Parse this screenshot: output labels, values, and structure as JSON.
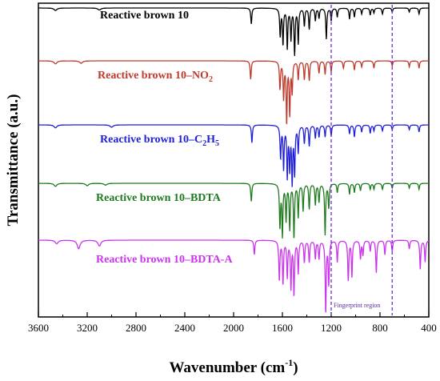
{
  "chart_data": {
    "type": "line",
    "xlabel": "Wavenumber (cm",
    "xlabel_sup": "-1",
    "xlabel_end": ")",
    "ylabel": "Transmittance (a.u.)",
    "x_reversed": true,
    "xlim": [
      3600,
      400
    ],
    "x_ticks": [
      3600,
      3200,
      2800,
      2400,
      2000,
      1600,
      1200,
      800,
      400
    ],
    "y_ticks_shown": false,
    "legend": "inline labels next to each spectrum",
    "annotation": {
      "text": "Fingerprint region",
      "range_cm": [
        1200,
        700
      ],
      "color": "#6a2bd9",
      "style": "dashed vertical lines"
    },
    "series": [
      {
        "name": "Reactive brown 10",
        "label_main": "Reactive brown 10",
        "label_sub": "",
        "label_tail": "",
        "color": "#000000",
        "peaks": [
          [
            1855,
            0.32
          ],
          [
            1618,
            0.55
          ],
          [
            1595,
            0.72
          ],
          [
            1560,
            0.8
          ],
          [
            1530,
            0.62
          ],
          [
            1500,
            0.92
          ],
          [
            1470,
            0.7
          ],
          [
            1420,
            0.35
          ],
          [
            1380,
            0.42
          ],
          [
            1330,
            0.25
          ],
          [
            1300,
            0.2
          ],
          [
            1240,
            0.62
          ],
          [
            1200,
            0.25
          ],
          [
            1150,
            0.18
          ],
          [
            1050,
            0.22
          ],
          [
            1010,
            0.18
          ],
          [
            950,
            0.12
          ],
          [
            880,
            0.14
          ],
          [
            850,
            0.1
          ],
          [
            780,
            0.12
          ],
          [
            700,
            0.08
          ],
          [
            560,
            0.08
          ],
          [
            480,
            0.12
          ],
          [
            3460,
            0.05
          ],
          [
            3100,
            0.04
          ]
        ]
      },
      {
        "name": "Reactive brown 10–NO2",
        "label_main": "Reactive brown 10–NO",
        "label_sub": "2",
        "label_tail": "",
        "color": "#c0392b",
        "peaks": [
          [
            1860,
            0.3
          ],
          [
            1620,
            0.45
          ],
          [
            1590,
            0.6
          ],
          [
            1565,
            1.0
          ],
          [
            1540,
            0.85
          ],
          [
            1520,
            0.5
          ],
          [
            1470,
            0.3
          ],
          [
            1420,
            0.3
          ],
          [
            1380,
            0.32
          ],
          [
            1300,
            0.2
          ],
          [
            1250,
            0.22
          ],
          [
            1200,
            0.18
          ],
          [
            1100,
            0.12
          ],
          [
            1010,
            0.15
          ],
          [
            950,
            0.1
          ],
          [
            850,
            0.12
          ],
          [
            700,
            0.08
          ],
          [
            560,
            0.1
          ],
          [
            480,
            0.12
          ],
          [
            3460,
            0.05
          ],
          [
            3250,
            0.04
          ]
        ]
      },
      {
        "name": "Reactive brown 10–C2H5",
        "label_main": "Reactive brown 10–C",
        "label_sub": "2",
        "label_tail": "H",
        "label_sub2": "5",
        "color": "#1f1fd6",
        "peaks": [
          [
            1850,
            0.3
          ],
          [
            1615,
            0.55
          ],
          [
            1590,
            0.72
          ],
          [
            1560,
            0.85
          ],
          [
            1540,
            0.7
          ],
          [
            1520,
            0.95
          ],
          [
            1500,
            0.8
          ],
          [
            1470,
            0.45
          ],
          [
            1420,
            0.3
          ],
          [
            1380,
            0.35
          ],
          [
            1330,
            0.22
          ],
          [
            1300,
            0.2
          ],
          [
            1250,
            0.2
          ],
          [
            1200,
            0.18
          ],
          [
            1050,
            0.15
          ],
          [
            1010,
            0.2
          ],
          [
            950,
            0.12
          ],
          [
            880,
            0.14
          ],
          [
            850,
            0.1
          ],
          [
            780,
            0.1
          ],
          [
            700,
            0.08
          ],
          [
            560,
            0.08
          ],
          [
            480,
            0.12
          ],
          [
            3460,
            0.05
          ],
          [
            3000,
            0.04
          ]
        ]
      },
      {
        "name": "Reactive brown 10–BDTA",
        "label_main": "Reactive brown 10–BDTA",
        "label_sub": "",
        "label_tail": "",
        "color": "#1f7a1f",
        "peaks": [
          [
            1855,
            0.3
          ],
          [
            1620,
            0.7
          ],
          [
            1600,
            0.85
          ],
          [
            1570,
            0.6
          ],
          [
            1540,
            0.75
          ],
          [
            1505,
            0.9
          ],
          [
            1470,
            0.55
          ],
          [
            1430,
            0.45
          ],
          [
            1380,
            0.42
          ],
          [
            1330,
            0.35
          ],
          [
            1300,
            0.3
          ],
          [
            1250,
            0.85
          ],
          [
            1220,
            0.4
          ],
          [
            1150,
            0.15
          ],
          [
            1050,
            0.18
          ],
          [
            1010,
            0.15
          ],
          [
            960,
            0.12
          ],
          [
            880,
            0.1
          ],
          [
            850,
            0.1
          ],
          [
            780,
            0.1
          ],
          [
            700,
            0.08
          ],
          [
            560,
            0.08
          ],
          [
            480,
            0.1
          ],
          [
            3460,
            0.05
          ],
          [
            3200,
            0.04
          ],
          [
            3050,
            0.03
          ]
        ]
      },
      {
        "name": "Reactive brown 10–BDTA-A",
        "label_main": "Reactive brown 10–BDTA-A",
        "label_sub": "",
        "label_tail": "",
        "color": "#cc33ee",
        "peaks": [
          [
            3270,
            0.12
          ],
          [
            3100,
            0.08
          ],
          [
            1830,
            0.2
          ],
          [
            1625,
            0.55
          ],
          [
            1595,
            0.6
          ],
          [
            1560,
            0.5
          ],
          [
            1530,
            0.65
          ],
          [
            1505,
            0.75
          ],
          [
            1470,
            0.45
          ],
          [
            1420,
            0.3
          ],
          [
            1380,
            0.3
          ],
          [
            1330,
            0.25
          ],
          [
            1300,
            0.25
          ],
          [
            1245,
            1.0
          ],
          [
            1220,
            0.6
          ],
          [
            1150,
            0.3
          ],
          [
            1060,
            0.55
          ],
          [
            1030,
            0.5
          ],
          [
            960,
            0.25
          ],
          [
            940,
            0.2
          ],
          [
            880,
            0.15
          ],
          [
            830,
            0.45
          ],
          [
            760,
            0.2
          ],
          [
            700,
            0.15
          ],
          [
            560,
            0.12
          ],
          [
            470,
            0.4
          ],
          [
            430,
            0.3
          ],
          [
            3450,
            0.05
          ]
        ]
      }
    ]
  }
}
